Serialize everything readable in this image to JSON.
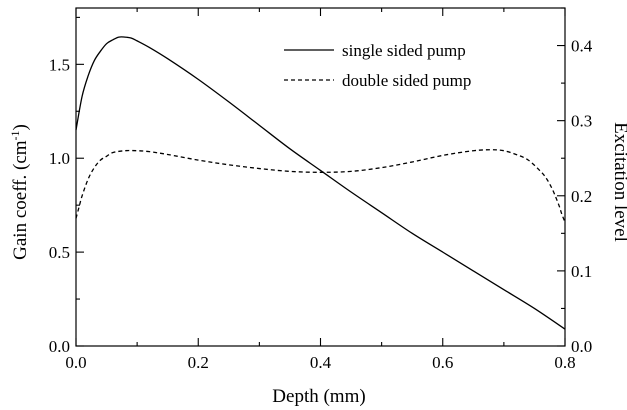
{
  "chart_data": {
    "type": "line",
    "xlabel": "Depth (mm)",
    "ylabel_main": "Gain coeff. (cm",
    "ylabel_sup": "-1",
    "ylabel_close": ")",
    "y2label": "Excitation level",
    "xlim": [
      0.0,
      0.8
    ],
    "ylim": [
      0.0,
      1.8
    ],
    "y2lim": [
      0.0,
      0.45
    ],
    "xticks": [
      "0.0",
      "0.2",
      "0.4",
      "0.6",
      "0.8"
    ],
    "yticks": [
      "0.0",
      "0.5",
      "1.0",
      "1.5"
    ],
    "y2ticks": [
      "0.0",
      "0.1",
      "0.2",
      "0.3",
      "0.4"
    ],
    "xtick_values": [
      0.0,
      0.2,
      0.4,
      0.6,
      0.8
    ],
    "ytick_values": [
      0.0,
      0.5,
      1.0,
      1.5
    ],
    "y2tick_values": [
      0.0,
      0.1,
      0.2,
      0.3,
      0.4
    ],
    "grid": false,
    "legend_position": "top-right",
    "series": [
      {
        "name": "single sided pump",
        "style": "solid",
        "x": [
          0.0,
          0.01,
          0.02,
          0.03,
          0.04,
          0.05,
          0.06,
          0.07,
          0.08,
          0.09,
          0.1,
          0.12,
          0.15,
          0.2,
          0.25,
          0.3,
          0.35,
          0.4,
          0.45,
          0.5,
          0.55,
          0.6,
          0.65,
          0.7,
          0.75,
          0.8
        ],
        "values": [
          1.15,
          1.33,
          1.44,
          1.52,
          1.57,
          1.61,
          1.63,
          1.645,
          1.645,
          1.64,
          1.625,
          1.59,
          1.53,
          1.42,
          1.3,
          1.175,
          1.05,
          0.935,
          0.82,
          0.71,
          0.6,
          0.5,
          0.4,
          0.3,
          0.2,
          0.09
        ]
      },
      {
        "name": "double sided pump",
        "style": "dashed",
        "x": [
          0.0,
          0.005,
          0.01,
          0.02,
          0.03,
          0.04,
          0.05,
          0.06,
          0.08,
          0.1,
          0.12,
          0.15,
          0.2,
          0.25,
          0.3,
          0.35,
          0.4,
          0.45,
          0.5,
          0.55,
          0.6,
          0.65,
          0.68,
          0.7,
          0.72,
          0.74,
          0.76,
          0.77,
          0.78,
          0.79,
          0.795,
          0.8
        ],
        "values": [
          0.68,
          0.74,
          0.8,
          0.89,
          0.95,
          0.99,
          1.01,
          1.03,
          1.04,
          1.04,
          1.035,
          1.02,
          0.99,
          0.965,
          0.945,
          0.93,
          0.925,
          0.93,
          0.95,
          0.98,
          1.015,
          1.04,
          1.045,
          1.04,
          1.02,
          0.99,
          0.93,
          0.89,
          0.83,
          0.75,
          0.7,
          0.66
        ]
      }
    ]
  }
}
